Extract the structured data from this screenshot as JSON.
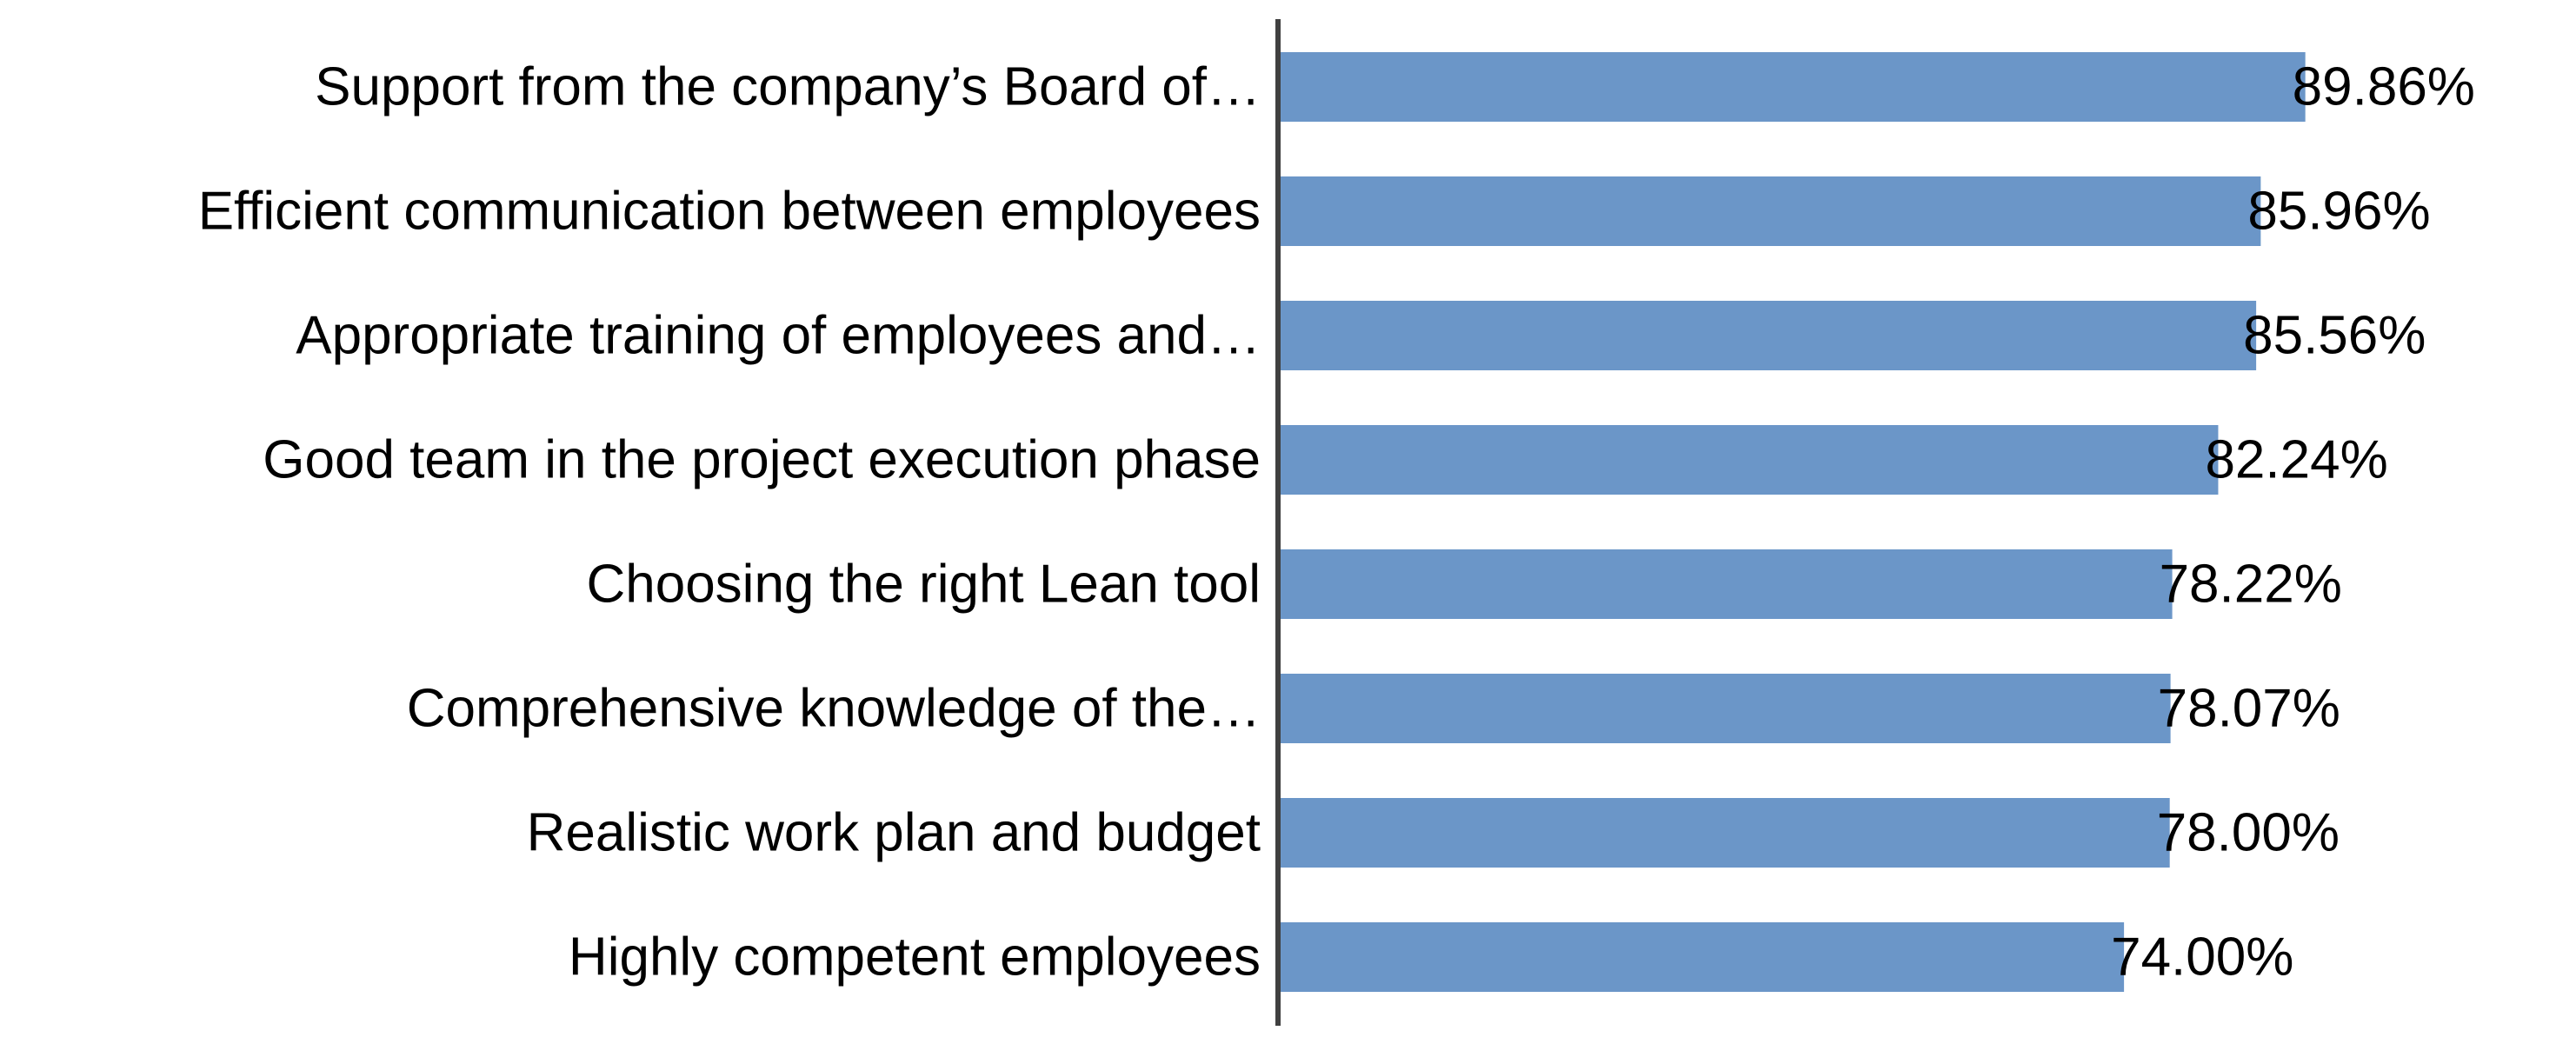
{
  "chart_data": {
    "type": "bar",
    "orientation": "horizontal",
    "categories": [
      "Support from the company’s Board of…",
      "Efficient communication between employees",
      "Appropriate training of employees and…",
      "Good team in the project execution phase",
      "Choosing the right Lean tool",
      "Comprehensive knowledge of the…",
      "Realistic work plan and budget",
      "Highly competent employees"
    ],
    "values": [
      89.86,
      85.96,
      85.56,
      82.24,
      78.22,
      78.07,
      78.0,
      74.0
    ],
    "value_labels": [
      "89.86%",
      "85.96%",
      "85.56%",
      "82.24%",
      "78.22%",
      "78.07%",
      "78.00%",
      "74.00%"
    ],
    "xlim": [
      0,
      100
    ],
    "grid": false,
    "legend": "none",
    "bar_color": "#6b96c8",
    "axis_color": "#404040"
  }
}
